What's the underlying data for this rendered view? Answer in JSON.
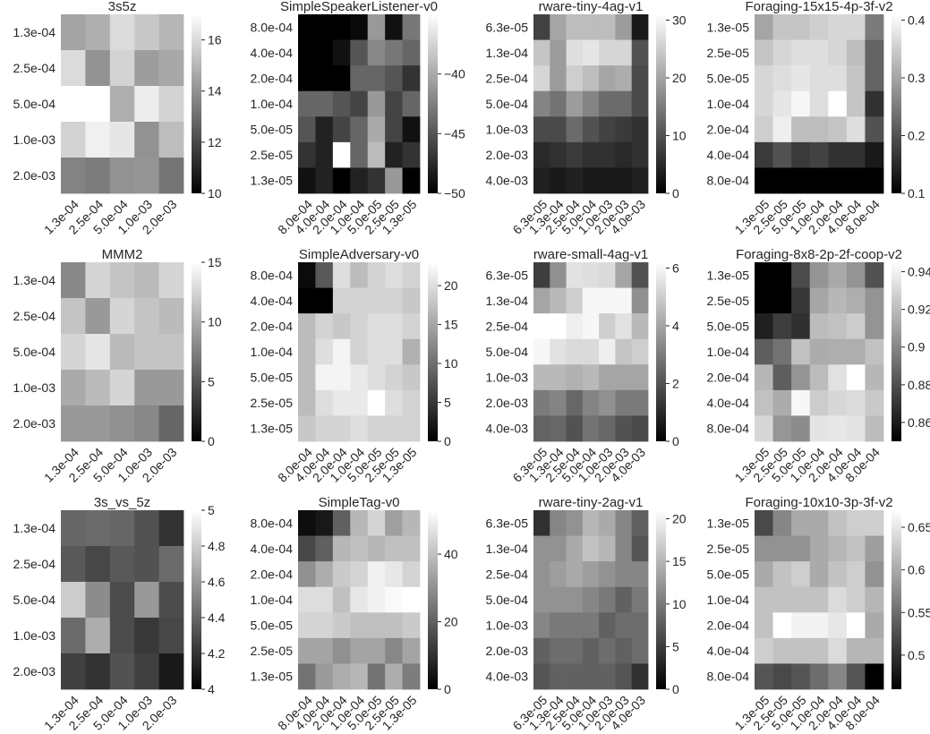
{
  "figure": {
    "description_free": true
  },
  "chart_data": [
    {
      "type": "heatmap",
      "title": "3s5z",
      "x_tick_labels": [
        "1.3e-04",
        "2.5e-04",
        "5.0e-04",
        "1.0e-03",
        "2.0e-03"
      ],
      "y_tick_labels": [
        "1.3e-04",
        "2.5e-04",
        "5.0e-04",
        "1.0e-03",
        "2.0e-03"
      ],
      "colorbar": {
        "vmin": 10,
        "vmax": 17,
        "ticks": [
          10,
          12,
          14,
          16
        ]
      },
      "values": [
        [
          14.5,
          14.8,
          16.0,
          15.5,
          15.0
        ],
        [
          16.0,
          14.0,
          15.8,
          14.3,
          14.6
        ],
        [
          17.0,
          17.0,
          14.8,
          16.5,
          15.8
        ],
        [
          15.8,
          16.6,
          16.3,
          14.0,
          15.2
        ],
        [
          13.6,
          13.4,
          14.0,
          14.1,
          13.2
        ]
      ]
    },
    {
      "type": "heatmap",
      "title": "SimpleSpeakerListener-v0",
      "x_tick_labels": [
        "8.0e-04",
        "4.0e-04",
        "2.0e-04",
        "1.0e-04",
        "5.0e-05",
        "2.5e-05",
        "1.3e-05"
      ],
      "y_tick_labels": [
        "8.0e-04",
        "4.0e-04",
        "2.0e-04",
        "1.0e-04",
        "5.0e-05",
        "2.5e-05",
        "1.3e-05"
      ],
      "colorbar": {
        "vmin": -50,
        "vmax": -35,
        "ticks": [
          -50,
          -45,
          -40
        ]
      },
      "values": [
        [
          -50,
          -50,
          -50,
          -49.5,
          -41,
          -49,
          -43
        ],
        [
          -50,
          -50,
          -49,
          -45,
          -42,
          -43,
          -44
        ],
        [
          -50,
          -50,
          -50,
          -44,
          -44,
          -45,
          -47
        ],
        [
          -44,
          -44,
          -45,
          -46,
          -41,
          -46,
          -44
        ],
        [
          -45,
          -48,
          -46,
          -44,
          -40,
          -46,
          -49
        ],
        [
          -47,
          -48,
          -35,
          -44,
          -39,
          -48,
          -47
        ],
        [
          -49,
          -48,
          -50,
          -48,
          -47,
          -41,
          -50
        ]
      ]
    },
    {
      "type": "heatmap",
      "title": "rware-tiny-4ag-v1",
      "x_tick_labels": [
        "6.3e-05",
        "1.3e-04",
        "2.5e-04",
        "5.0e-04",
        "1.0e-03",
        "2.0e-03",
        "4.0e-03"
      ],
      "y_tick_labels": [
        "6.3e-05",
        "1.3e-04",
        "2.5e-04",
        "5.0e-04",
        "1.0e-03",
        "2.0e-03",
        "4.0e-03"
      ],
      "colorbar": {
        "vmin": 0,
        "vmax": 31,
        "ticks": [
          0,
          10,
          20,
          30
        ]
      },
      "values": [
        [
          8,
          20,
          23,
          23,
          23,
          19,
          3
        ],
        [
          24,
          19,
          27,
          28,
          26,
          26,
          10
        ],
        [
          26,
          19,
          25,
          23,
          20,
          21,
          9
        ],
        [
          16,
          14,
          19,
          16,
          13,
          13,
          9
        ],
        [
          9,
          9,
          13,
          10,
          8,
          7,
          6
        ],
        [
          5,
          6,
          7,
          6,
          6,
          5,
          6
        ],
        [
          4,
          3,
          4,
          3,
          3,
          3,
          4
        ]
      ]
    },
    {
      "type": "heatmap",
      "title": "Foraging-15x15-4p-3f-v2",
      "x_tick_labels": [
        "1.3e-05",
        "2.5e-05",
        "5.0e-05",
        "1.0e-04",
        "2.0e-04",
        "4.0e-04",
        "8.0e-04"
      ],
      "y_tick_labels": [
        "1.3e-05",
        "2.5e-05",
        "5.0e-05",
        "1.0e-04",
        "2.0e-04",
        "4.0e-04",
        "8.0e-04"
      ],
      "colorbar": {
        "vmin": 0.1,
        "vmax": 0.41,
        "ticks": [
          0.1,
          0.2,
          0.3,
          0.4
        ]
      },
      "values": [
        [
          0.3,
          0.34,
          0.34,
          0.35,
          0.36,
          0.36,
          0.25
        ],
        [
          0.34,
          0.36,
          0.37,
          0.37,
          0.36,
          0.33,
          0.22
        ],
        [
          0.36,
          0.37,
          0.38,
          0.37,
          0.37,
          0.34,
          0.22
        ],
        [
          0.36,
          0.38,
          0.4,
          0.37,
          0.41,
          0.34,
          0.16
        ],
        [
          0.35,
          0.39,
          0.33,
          0.33,
          0.34,
          0.37,
          0.2
        ],
        [
          0.17,
          0.2,
          0.17,
          0.18,
          0.16,
          0.16,
          0.13
        ],
        [
          0.1,
          0.1,
          0.1,
          0.1,
          0.1,
          0.1,
          0.1
        ]
      ]
    },
    {
      "type": "heatmap",
      "title": "MMM2",
      "x_tick_labels": [
        "1.3e-04",
        "2.5e-04",
        "5.0e-04",
        "1.0e-03",
        "2.0e-03"
      ],
      "y_tick_labels": [
        "1.3e-04",
        "2.5e-04",
        "5.0e-04",
        "1.0e-03",
        "2.0e-03"
      ],
      "colorbar": {
        "vmin": 0,
        "vmax": 15,
        "ticks": [
          0,
          5,
          10,
          15
        ]
      },
      "values": [
        [
          8,
          12.5,
          11.5,
          11,
          12.5
        ],
        [
          11.5,
          9,
          12.5,
          11.5,
          11
        ],
        [
          12.5,
          13.5,
          11,
          11.5,
          11.5
        ],
        [
          10,
          11,
          12.5,
          9,
          9
        ],
        [
          9,
          9,
          8.5,
          8,
          6
        ]
      ]
    },
    {
      "type": "heatmap",
      "title": "SimpleAdversary-v0",
      "x_tick_labels": [
        "8.0e-04",
        "4.0e-04",
        "2.0e-04",
        "1.0e-04",
        "5.0e-05",
        "2.5e-05",
        "1.3e-05"
      ],
      "y_tick_labels": [
        "8.0e-04",
        "4.0e-04",
        "2.0e-04",
        "1.0e-04",
        "5.0e-05",
        "2.5e-05",
        "1.3e-05"
      ],
      "colorbar": {
        "vmin": 0,
        "vmax": 23,
        "ticks": [
          0,
          5,
          10,
          15,
          20
        ]
      },
      "values": [
        [
          1,
          8,
          20,
          17,
          19,
          20,
          19
        ],
        [
          0,
          0,
          19,
          19,
          19,
          19,
          18
        ],
        [
          17,
          19,
          18,
          19,
          20,
          20,
          19
        ],
        [
          17,
          20,
          22,
          19,
          20,
          20,
          16
        ],
        [
          17,
          22,
          22,
          21,
          20,
          19,
          18
        ],
        [
          17,
          20,
          21,
          21,
          23,
          20,
          19
        ],
        [
          18,
          19,
          19,
          20,
          19,
          19,
          19
        ]
      ]
    },
    {
      "type": "heatmap",
      "title": "rware-small-4ag-v1",
      "x_tick_labels": [
        "6.3e-05",
        "1.3e-04",
        "2.5e-04",
        "5.0e-04",
        "1.0e-03",
        "2.0e-03",
        "4.0e-03"
      ],
      "y_tick_labels": [
        "6.3e-05",
        "1.3e-04",
        "2.5e-04",
        "5.0e-04",
        "1.0e-03",
        "2.0e-03",
        "4.0e-03"
      ],
      "colorbar": {
        "vmin": 0,
        "vmax": 6.2,
        "ticks": [
          0,
          2,
          4,
          6
        ]
      },
      "values": [
        [
          1.5,
          3.5,
          5.5,
          5.4,
          5.3,
          4,
          2
        ],
        [
          4,
          4.5,
          5,
          6,
          6,
          6,
          3.5
        ],
        [
          6.2,
          6.2,
          5.8,
          6,
          5,
          5.5,
          4.5
        ],
        [
          6,
          5.5,
          5.3,
          5.3,
          5.8,
          4.8,
          5
        ],
        [
          4.5,
          4.5,
          4.3,
          4.5,
          4,
          4,
          4
        ],
        [
          3,
          3.2,
          2.5,
          3.2,
          3.5,
          3,
          3
        ],
        [
          2.4,
          2.5,
          2,
          2.8,
          2.5,
          2,
          1.8
        ]
      ]
    },
    {
      "type": "heatmap",
      "title": "Foraging-8x8-2p-2f-coop-v2",
      "x_tick_labels": [
        "1.3e-05",
        "2.5e-05",
        "5.0e-05",
        "1.0e-04",
        "2.0e-04",
        "4.0e-04",
        "8.0e-04"
      ],
      "y_tick_labels": [
        "1.3e-05",
        "2.5e-05",
        "5.0e-05",
        "1.0e-04",
        "2.0e-04",
        "4.0e-04",
        "8.0e-04"
      ],
      "colorbar": {
        "vmin": 0.85,
        "vmax": 0.945,
        "ticks": [
          0.86,
          0.88,
          0.9,
          0.92,
          0.94
        ]
      },
      "values": [
        [
          0.85,
          0.85,
          0.878,
          0.905,
          0.913,
          0.905,
          0.88
        ],
        [
          0.85,
          0.85,
          0.87,
          0.912,
          0.918,
          0.915,
          0.905
        ],
        [
          0.862,
          0.873,
          0.868,
          0.92,
          0.922,
          0.926,
          0.905
        ],
        [
          0.885,
          0.893,
          0.922,
          0.914,
          0.915,
          0.915,
          0.922
        ],
        [
          0.918,
          0.885,
          0.905,
          0.92,
          0.934,
          0.945,
          0.918
        ],
        [
          0.922,
          0.914,
          0.942,
          0.926,
          0.93,
          0.932,
          0.925
        ],
        [
          0.93,
          0.906,
          0.902,
          0.935,
          0.936,
          0.935,
          0.92
        ]
      ]
    },
    {
      "type": "heatmap",
      "title": "3s_vs_5z",
      "x_tick_labels": [
        "1.3e-04",
        "2.5e-04",
        "5.0e-04",
        "1.0e-03",
        "2.0e-03"
      ],
      "y_tick_labels": [
        "1.3e-04",
        "2.5e-04",
        "5.0e-04",
        "1.0e-03",
        "2.0e-03"
      ],
      "colorbar": {
        "vmin": 4.0,
        "vmax": 5.0,
        "ticks": [
          4.0,
          4.2,
          4.4,
          4.6,
          4.8,
          5.0
        ]
      },
      "values": [
        [
          4.4,
          4.42,
          4.4,
          4.32,
          4.2
        ],
        [
          4.35,
          4.28,
          4.35,
          4.32,
          4.42
        ],
        [
          4.8,
          4.55,
          4.3,
          4.6,
          4.3
        ],
        [
          4.42,
          4.68,
          4.3,
          4.22,
          4.28
        ],
        [
          4.25,
          4.2,
          4.32,
          4.25,
          4.1
        ]
      ]
    },
    {
      "type": "heatmap",
      "title": "SimpleTag-v0",
      "x_tick_labels": [
        "8.0e-04",
        "4.0e-04",
        "2.0e-04",
        "1.0e-04",
        "5.0e-05",
        "2.5e-05",
        "1.3e-05"
      ],
      "y_tick_labels": [
        "8.0e-04",
        "4.0e-04",
        "2.0e-04",
        "1.0e-04",
        "5.0e-05",
        "2.5e-05",
        "1.3e-05"
      ],
      "colorbar": {
        "vmin": 0,
        "vmax": 53,
        "ticks": [
          0,
          20,
          40
        ]
      },
      "values": [
        [
          3,
          5,
          20,
          38,
          44,
          33,
          38
        ],
        [
          15,
          20,
          38,
          40,
          38,
          40,
          40
        ],
        [
          30,
          36,
          42,
          44,
          50,
          48,
          44
        ],
        [
          46,
          46,
          40,
          48,
          50,
          52,
          53
        ],
        [
          44,
          44,
          42,
          40,
          40,
          40,
          42
        ],
        [
          34,
          34,
          30,
          34,
          34,
          28,
          34
        ],
        [
          24,
          32,
          36,
          38,
          24,
          36,
          26
        ]
      ]
    },
    {
      "type": "heatmap",
      "title": "rware-tiny-2ag-v1",
      "x_tick_labels": [
        "6.3e-05",
        "1.3e-04",
        "2.5e-04",
        "5.0e-04",
        "1.0e-03",
        "2.0e-03",
        "4.0e-03"
      ],
      "y_tick_labels": [
        "6.3e-05",
        "1.3e-04",
        "2.5e-04",
        "5.0e-04",
        "1.0e-03",
        "2.0e-03",
        "4.0e-03"
      ],
      "colorbar": {
        "vmin": 0,
        "vmax": 21,
        "ticks": [
          0,
          5,
          10,
          15,
          20
        ]
      },
      "values": [
        [
          4,
          11,
          12,
          15,
          14,
          11,
          8
        ],
        [
          12,
          12,
          14,
          16,
          15,
          11,
          7
        ],
        [
          12,
          13,
          14,
          13,
          12,
          11,
          11
        ],
        [
          12,
          12,
          12,
          11,
          10,
          8,
          10
        ],
        [
          11,
          10,
          10,
          10,
          8,
          9,
          9
        ],
        [
          8,
          9,
          9,
          8,
          9,
          8,
          9
        ],
        [
          7,
          8,
          8,
          8,
          8,
          7,
          4
        ]
      ]
    },
    {
      "type": "heatmap",
      "title": "Foraging-10x10-3p-3f-v2",
      "x_tick_labels": [
        "1.3e-05",
        "2.5e-05",
        "5.0e-05",
        "1.0e-04",
        "2.0e-04",
        "4.0e-04",
        "8.0e-04"
      ],
      "y_tick_labels": [
        "1.3e-05",
        "2.5e-05",
        "5.0e-05",
        "1.0e-04",
        "2.0e-04",
        "4.0e-04",
        "8.0e-04"
      ],
      "colorbar": {
        "vmin": 0.46,
        "vmax": 0.67,
        "ticks": [
          0.5,
          0.55,
          0.6,
          0.65
        ]
      },
      "values": [
        [
          0.52,
          0.57,
          0.6,
          0.6,
          0.62,
          0.63,
          0.63
        ],
        [
          0.58,
          0.58,
          0.58,
          0.6,
          0.61,
          0.62,
          0.59
        ],
        [
          0.6,
          0.62,
          0.63,
          0.6,
          0.62,
          0.63,
          0.58
        ],
        [
          0.62,
          0.62,
          0.62,
          0.62,
          0.64,
          0.63,
          0.61
        ],
        [
          0.62,
          0.67,
          0.66,
          0.66,
          0.65,
          0.67,
          0.6
        ],
        [
          0.63,
          0.62,
          0.62,
          0.62,
          0.64,
          0.61,
          0.61
        ],
        [
          0.53,
          0.52,
          0.53,
          0.55,
          0.57,
          0.53,
          0.46
        ]
      ]
    }
  ]
}
